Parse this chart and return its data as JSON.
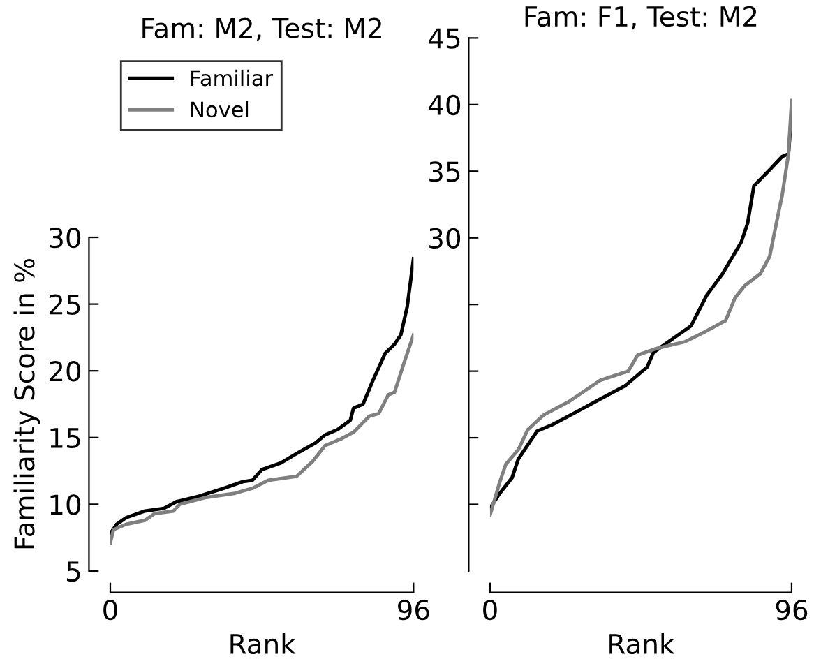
{
  "chart_data": [
    {
      "type": "line",
      "title": "Fam: M2, Test: M2",
      "xlabel": "Rank",
      "ylabel": "Familiarity Score in %",
      "xlim": [
        0,
        96
      ],
      "xticks": [
        0,
        96
      ],
      "ylim": [
        5,
        30
      ],
      "yticks": [
        5,
        10,
        15,
        20,
        25,
        30
      ],
      "grid": false,
      "legend": "top left",
      "marker": "none",
      "line_style": "solid",
      "series": [
        {
          "name": "Familiar",
          "color": "#000000",
          "x": [
            0,
            2,
            5,
            11,
            17,
            21,
            28,
            36,
            42,
            45,
            48,
            54,
            59,
            65,
            68,
            72,
            76,
            77,
            80,
            83,
            87,
            90,
            92,
            94,
            96
          ],
          "values": [
            7.8,
            8.5,
            9.0,
            9.5,
            9.7,
            10.2,
            10.6,
            11.2,
            11.7,
            11.8,
            12.6,
            13.1,
            13.8,
            14.6,
            15.2,
            15.6,
            16.3,
            17.2,
            17.5,
            19.2,
            21.3,
            22.0,
            22.7,
            24.8,
            28.4
          ]
        },
        {
          "name": "Novel",
          "color": "#808080",
          "x": [
            0,
            1,
            5,
            11,
            14,
            20,
            22,
            30,
            39,
            45,
            50,
            59,
            64,
            68,
            73,
            77,
            82,
            85,
            88,
            90,
            93,
            96
          ],
          "values": [
            7.1,
            8.1,
            8.5,
            8.8,
            9.3,
            9.5,
            10.0,
            10.5,
            10.8,
            11.2,
            11.8,
            12.1,
            13.2,
            14.4,
            14.9,
            15.4,
            16.6,
            16.8,
            18.2,
            18.4,
            20.6,
            22.7
          ]
        }
      ]
    },
    {
      "type": "line",
      "title": "Fam: F1, Test: M2",
      "xlabel": "Rank",
      "xlim": [
        0,
        96
      ],
      "xticks": [
        0,
        96
      ],
      "ylim": [
        5,
        45
      ],
      "yticks": [
        {
          "value": 10,
          "label": null
        },
        {
          "value": 15,
          "label": null
        },
        {
          "value": 20,
          "label": null
        },
        {
          "value": 25,
          "label": null
        },
        30,
        35,
        40,
        45
      ],
      "grid": false,
      "marker": "none",
      "line_style": "solid",
      "series": [
        {
          "color": "#000000",
          "x": [
            0,
            3,
            7,
            9,
            15,
            20,
            28,
            35,
            43,
            50,
            52,
            58,
            64,
            69,
            74,
            80,
            82,
            84,
            89,
            93,
            95,
            96
          ],
          "values": [
            9.7,
            10.8,
            12.0,
            13.4,
            15.5,
            16.0,
            17.0,
            17.9,
            18.9,
            20.3,
            21.4,
            22.4,
            23.4,
            25.7,
            27.3,
            29.7,
            31.1,
            33.9,
            35.1,
            36.1,
            36.3,
            39.4
          ]
        },
        {
          "color": "#808080",
          "x": [
            0,
            3,
            5,
            9,
            12,
            17,
            25,
            35,
            44,
            47,
            53,
            62,
            68,
            75,
            78,
            81,
            86,
            89,
            92,
            93,
            95,
            96
          ],
          "values": [
            9.2,
            11.6,
            13.0,
            14.1,
            15.6,
            16.7,
            17.7,
            19.3,
            20.0,
            21.2,
            21.7,
            22.2,
            22.9,
            23.8,
            25.5,
            26.4,
            27.3,
            28.6,
            32.1,
            33.2,
            36.3,
            40.3
          ]
        }
      ]
    }
  ]
}
